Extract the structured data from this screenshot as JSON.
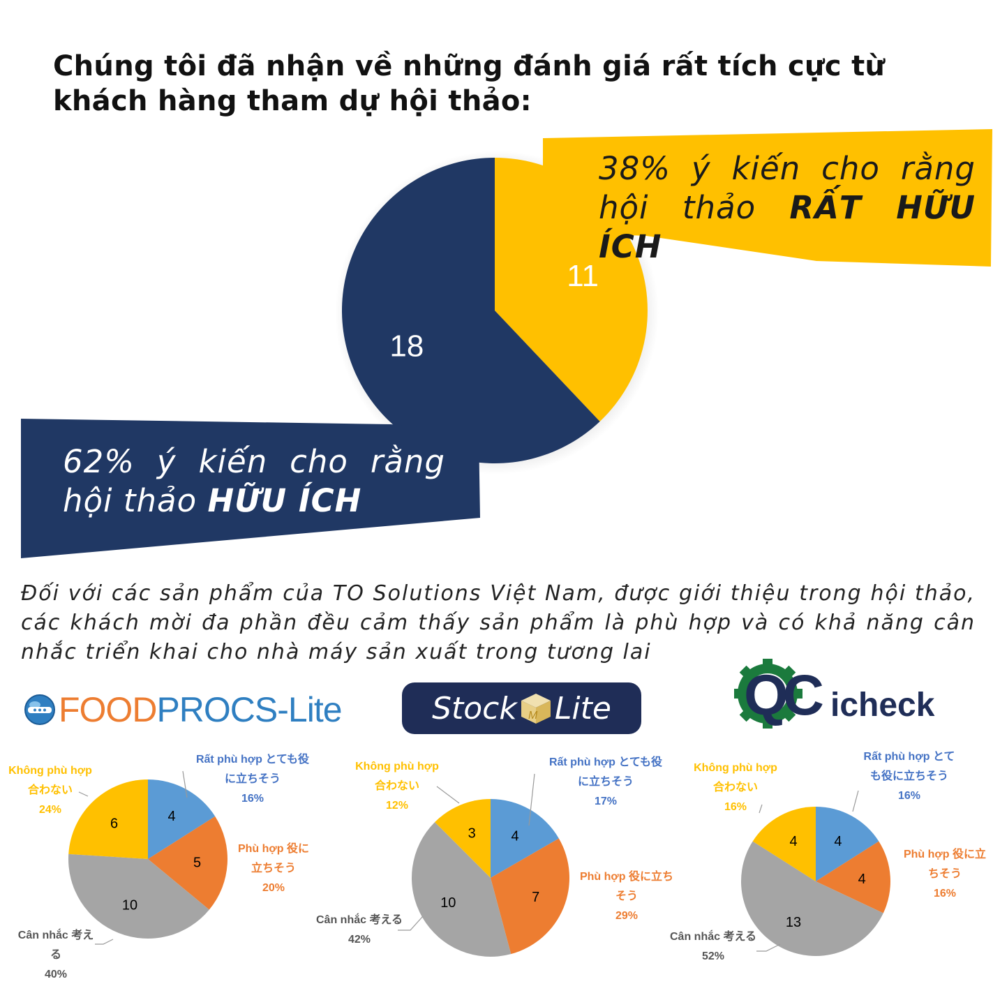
{
  "heading": "Chúng tôi đã nhận về những đánh giá rất tích cực từ khách hàng tham dự hội thảo:",
  "colors": {
    "navy": "#203864",
    "yellow": "#FFC000",
    "blue": "#5B9BD5",
    "orange": "#ED7D31",
    "gray": "#A5A5A5"
  },
  "callouts": {
    "very_useful": {
      "line1": "38% ý kiến cho rằng",
      "line2_prefix": "hội thảo ",
      "line2_bold": "RẤT HỮU ÍCH"
    },
    "useful": {
      "line1": "62% ý kiến cho rằng",
      "line2_prefix": "hội thảo ",
      "line2_bold": "HỮU ÍCH"
    }
  },
  "description": {
    "line1": "Đối với các sản phẩm của TO Solutions Việt Nam, được giới thiệu trong hội thảo,",
    "line2": "các khách mời đa phần đều cảm thấy sản phẩm là phù hợp và có khả năng cân",
    "line3": "nhắc triển khai cho nhà máy sản xuất trong tương lai"
  },
  "logos": {
    "foodprocs": {
      "food": "FOOD",
      "procs": "PROCS",
      "dash": "-",
      "lite": "Lite"
    },
    "stocklite": {
      "stock": "Stock",
      "cube": "M",
      "lite": "Lite"
    },
    "qcicheck": {
      "qc": "QC",
      "icheck": "icheck"
    }
  },
  "chart_data": [
    {
      "type": "pie",
      "values": [
        11,
        18
      ],
      "labels": [
        "11",
        "18"
      ],
      "colors": [
        "#FFC000",
        "#203864"
      ]
    },
    {
      "type": "pie",
      "values": [
        4,
        5,
        10,
        6
      ],
      "colors": [
        "#5B9BD5",
        "#ED7D31",
        "#A5A5A5",
        "#FFC000"
      ],
      "legend": [
        {
          "l1": "Rất phù hợp  とても役",
          "l2": "に立ちそう",
          "pct": "16%"
        },
        {
          "l1": "Phù hợp  役に",
          "l2": "立ちそう",
          "pct": "20%"
        },
        {
          "l1": "Cân nhắc  考え",
          "l2": "る",
          "pct": "40%"
        },
        {
          "l1": "Không phù hợp",
          "l2": "合わない",
          "pct": "24%"
        }
      ]
    },
    {
      "type": "pie",
      "values": [
        4,
        7,
        10,
        3
      ],
      "colors": [
        "#5B9BD5",
        "#ED7D31",
        "#A5A5A5",
        "#FFC000"
      ],
      "legend": [
        {
          "l1": "Rất phù hợp  とても役",
          "l2": "に立ちそう",
          "pct": "17%"
        },
        {
          "l1": "Phù hợp  役に立ち",
          "l2": "そう",
          "pct": "29%"
        },
        {
          "l1": "Cân nhắc  考える",
          "l2": "",
          "pct": "42%"
        },
        {
          "l1": "Không phù hợp",
          "l2": "合わない",
          "pct": "12%"
        }
      ]
    },
    {
      "type": "pie",
      "values": [
        4,
        4,
        13,
        4
      ],
      "colors": [
        "#5B9BD5",
        "#ED7D31",
        "#A5A5A5",
        "#FFC000"
      ],
      "legend": [
        {
          "l1": "Rất phù hợp  とて",
          "l2": "も役に立ちそう",
          "pct": "16%"
        },
        {
          "l1": "Phù hợp  役に立",
          "l2": "ちそう",
          "pct": "16%"
        },
        {
          "l1": "Cân nhắc  考える",
          "l2": "",
          "pct": "52%"
        },
        {
          "l1": "Không phù hợp",
          "l2": "合わない",
          "pct": "16%"
        }
      ]
    }
  ]
}
